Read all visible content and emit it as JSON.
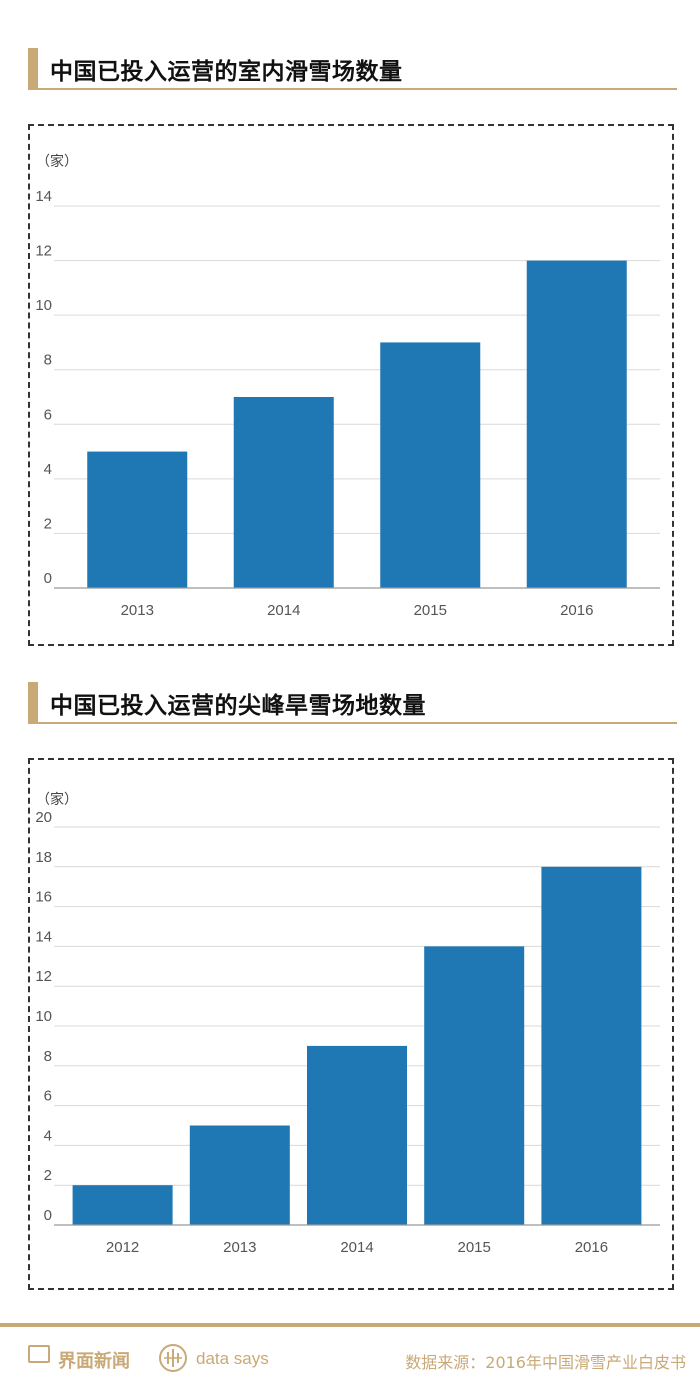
{
  "charts": [
    {
      "heading": "中国已投入运营的室内滑雪场数量",
      "unit": "（家）",
      "chart_data": {
        "type": "bar",
        "categories": [
          "2013",
          "2014",
          "2015",
          "2016"
        ],
        "values": [
          5,
          7,
          9,
          12
        ],
        "ylim": [
          0,
          14
        ],
        "yticks": [
          0,
          2,
          4,
          6,
          8,
          10,
          12,
          14
        ],
        "ylabel": "（家）",
        "grid": true,
        "color": "#1f77b4"
      }
    },
    {
      "heading": "中国已投入运营的尖峰旱雪场地数量",
      "unit": "（家）",
      "chart_data": {
        "type": "bar",
        "categories": [
          "2012",
          "2013",
          "2014",
          "2015",
          "2016"
        ],
        "values": [
          2,
          5,
          9,
          14,
          18
        ],
        "ylim": [
          0,
          20
        ],
        "yticks": [
          0,
          2,
          4,
          6,
          8,
          10,
          12,
          14,
          16,
          18,
          20
        ],
        "ylabel": "（家）",
        "grid": true,
        "color": "#1f77b4"
      }
    }
  ],
  "footer": {
    "brand": "界面新闻",
    "tagline": "data says",
    "source": "数据来源：2016年中国滑雪产业白皮书",
    "accent_color": "#c9a977"
  }
}
